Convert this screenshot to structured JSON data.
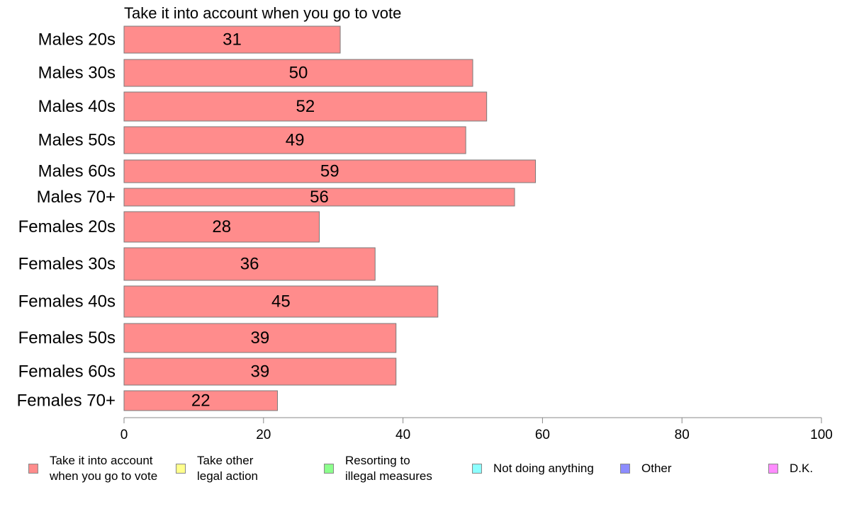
{
  "chart_data": {
    "type": "bar",
    "orientation": "horizontal",
    "title": "Take it into account when you go to vote",
    "categories": [
      "Males 20s",
      "Males 30s",
      "Males 40s",
      "Males 50s",
      "Males 60s",
      "Males 70+",
      "Females 20s",
      "Females 30s",
      "Females 40s",
      "Females 50s",
      "Females 60s",
      "Females 70+"
    ],
    "values": [
      31,
      50,
      52,
      49,
      59,
      56,
      28,
      36,
      45,
      39,
      39,
      22
    ],
    "value_labels": [
      "31",
      "50",
      "52",
      "49",
      "59",
      "56",
      "28",
      "36",
      "45",
      "39",
      "39",
      "22"
    ],
    "xlim": [
      0,
      100
    ],
    "xticks": [
      0,
      20,
      40,
      60,
      80,
      100
    ],
    "xtick_labels": [
      "0",
      "20",
      "40",
      "60",
      "80",
      "100"
    ],
    "bar_color": "#ff8c8c",
    "grid": false,
    "legend_position": "bottom",
    "legend": [
      {
        "label": "Take it into account\nwhen you go to vote",
        "color": "#ff8c8c"
      },
      {
        "label": "Take other\nlegal action",
        "color": "#ffff8c"
      },
      {
        "label": "Resorting to\nillegal measures",
        "color": "#8cff8c"
      },
      {
        "label": "Not doing anything",
        "color": "#8cffff"
      },
      {
        "label": "Other",
        "color": "#8c8cff"
      },
      {
        "label": "D.K.",
        "color": "#ff8cff"
      }
    ]
  }
}
